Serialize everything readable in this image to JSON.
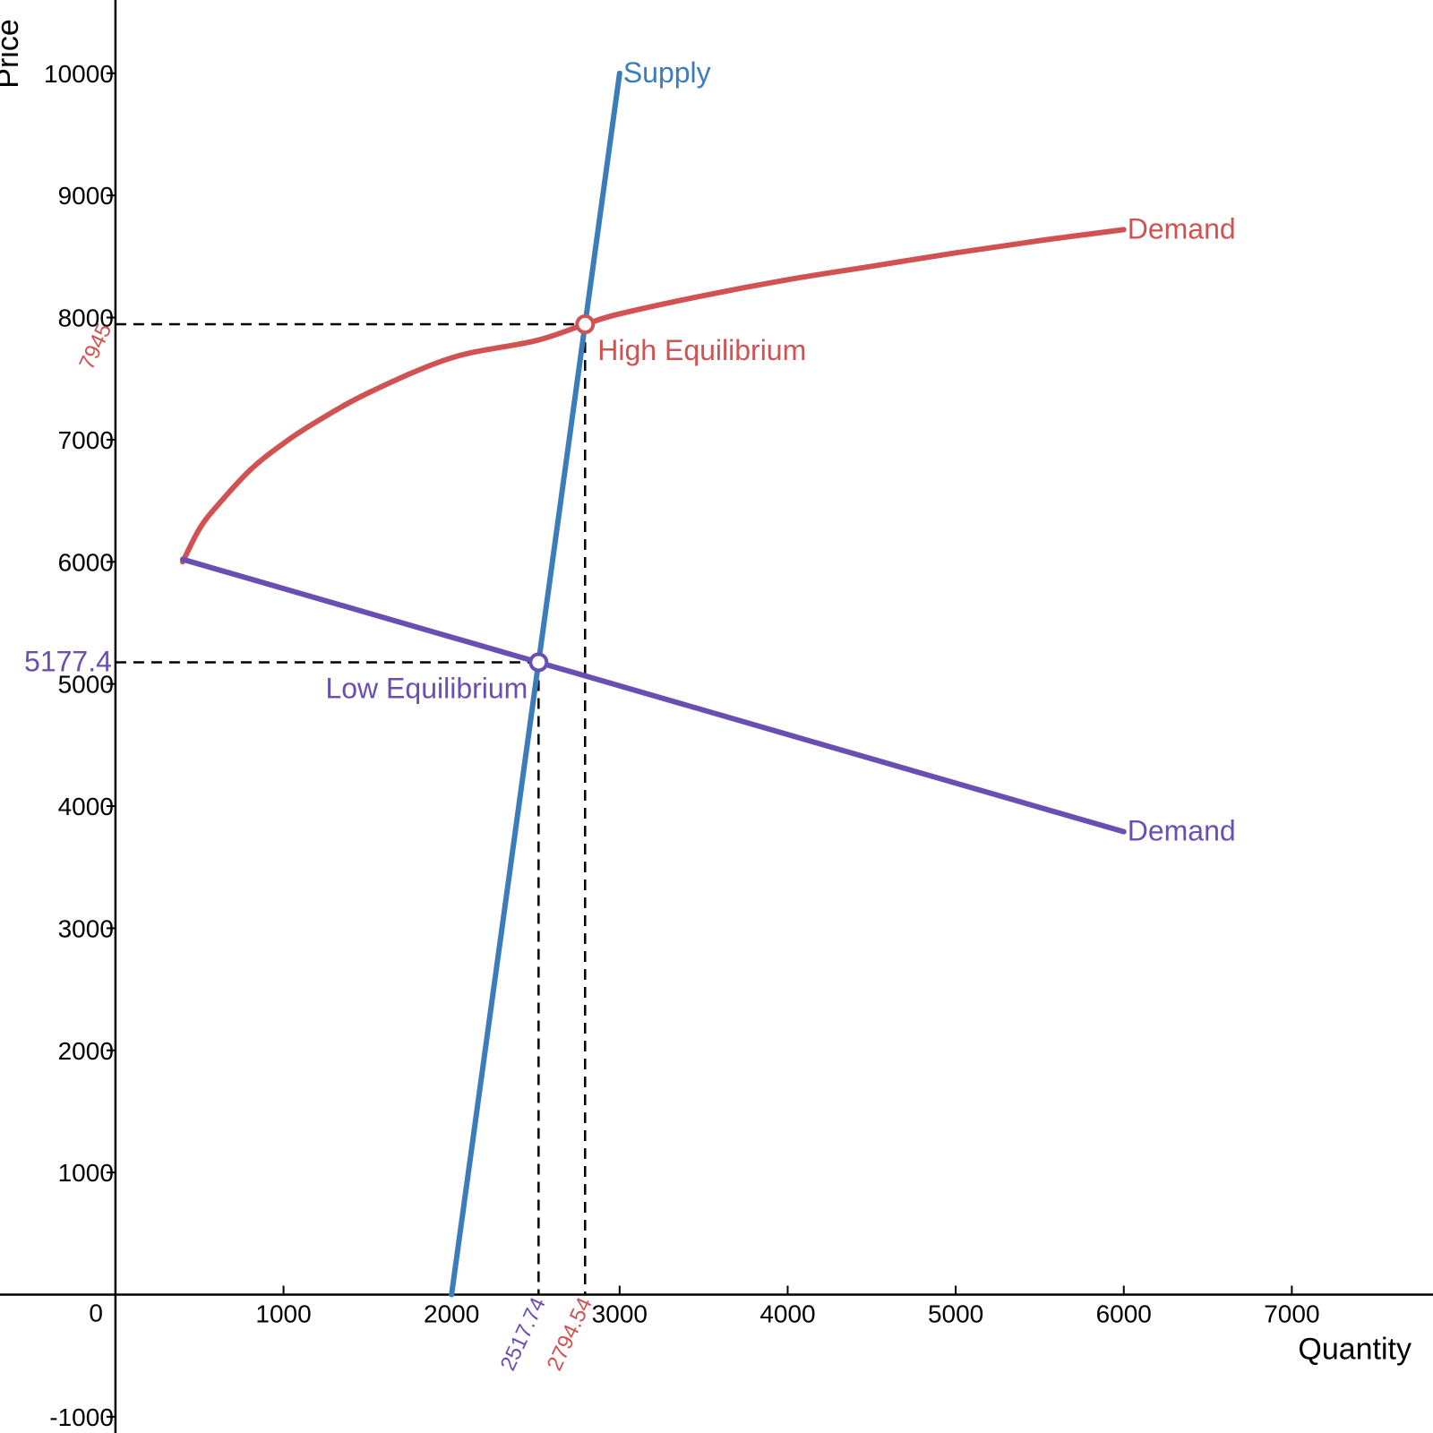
{
  "colors": {
    "supply": "#3b7cba",
    "demand_high": "#d05252",
    "demand_low": "#6a4fb2",
    "axis": "#000000",
    "guide": "#000000"
  },
  "chart_data": {
    "type": "line",
    "xlabel": "Quantity",
    "ylabel": "Price",
    "xlim": [
      -687,
      7840
    ],
    "ylim": [
      -1133,
      10600
    ],
    "x_ticks": [
      0,
      1000,
      2000,
      3000,
      4000,
      5000,
      6000,
      7000
    ],
    "y_ticks": [
      -1000,
      1000,
      2000,
      3000,
      4000,
      5000,
      6000,
      7000,
      8000,
      9000,
      10000
    ],
    "origin_label": "0",
    "series": [
      {
        "id": "supply",
        "name": "Supply",
        "color": "#3b7cba",
        "x": [
          2000,
          3000
        ],
        "y": [
          0,
          10000
        ]
      },
      {
        "id": "demand_high",
        "name": "Demand",
        "color": "#d05252",
        "x": [
          400,
          500,
          600,
          800,
          1000,
          1200,
          1500,
          2000,
          2500,
          2794.54,
          3000,
          3500,
          4000,
          4500,
          5000,
          5500,
          6000
        ],
        "y": [
          6000,
          6270,
          6450,
          6750,
          6970,
          7150,
          7380,
          7670,
          7810,
          7945,
          8030,
          8180,
          8310,
          8420,
          8530,
          8630,
          8720
        ]
      },
      {
        "id": "demand_low",
        "name": "Demand",
        "color": "#6a4fb2",
        "x": [
          400,
          6000
        ],
        "y": [
          6020,
          3790
        ]
      }
    ],
    "equilibria": [
      {
        "id": "high",
        "label": "High Equilibrium",
        "x": 2794.54,
        "y": 7945,
        "x_label": "2794.54",
        "y_label": "7945",
        "color": "#d05252"
      },
      {
        "id": "low",
        "label": "Low Equilibrium",
        "x": 2517.74,
        "y": 5177.4,
        "x_label": "2517.74",
        "y_label": "5177.4",
        "color": "#6a4fb2"
      }
    ]
  }
}
